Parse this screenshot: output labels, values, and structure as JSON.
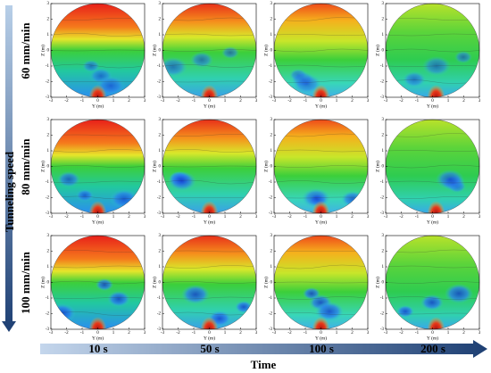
{
  "chart_data": [
    {
      "type": "contour",
      "xlabel": "Y (m)",
      "ylabel": "Z (m)",
      "xlim": [
        -3,
        3
      ],
      "ylim": [
        -3,
        3
      ],
      "xticks": [
        -3,
        -2,
        -1,
        0,
        1,
        2,
        3
      ],
      "yticks": [
        -3,
        -2,
        -1,
        0,
        1,
        2,
        3
      ]
    },
    {
      "type": "contour",
      "xlabel": "Y (m)",
      "ylabel": "Z (m)",
      "xlim": [
        -3,
        3
      ],
      "ylim": [
        -3,
        3
      ],
      "xticks": [
        -3,
        -2,
        -1,
        0,
        1,
        2,
        3
      ],
      "yticks": [
        -3,
        -2,
        -1,
        0,
        1,
        2,
        3
      ]
    },
    {
      "type": "contour",
      "xlabel": "Y (m)",
      "ylabel": "Z (m)",
      "xlim": [
        -3,
        3
      ],
      "ylim": [
        -3,
        3
      ],
      "xticks": [
        -3,
        -2,
        -1,
        0,
        1,
        2,
        3
      ],
      "yticks": [
        -3,
        -2,
        -1,
        0,
        1,
        2,
        3
      ]
    },
    {
      "type": "contour",
      "xlabel": "Y (m)",
      "ylabel": "Z (m)",
      "xlim": [
        -3,
        3
      ],
      "ylim": [
        -3,
        3
      ],
      "xticks": [
        -3,
        -2,
        -1,
        0,
        1,
        2,
        3
      ],
      "yticks": [
        -3,
        -2,
        -1,
        0,
        1,
        2,
        3
      ]
    },
    {
      "type": "contour",
      "xlabel": "Y (m)",
      "ylabel": "Z (m)",
      "xlim": [
        -3,
        3
      ],
      "ylim": [
        -3,
        3
      ],
      "xticks": [
        -3,
        -2,
        -1,
        0,
        1,
        2,
        3
      ],
      "yticks": [
        -3,
        -2,
        -1,
        0,
        1,
        2,
        3
      ]
    },
    {
      "type": "contour",
      "xlabel": "Y (m)",
      "ylabel": "Z (m)",
      "xlim": [
        -3,
        3
      ],
      "ylim": [
        -3,
        3
      ],
      "xticks": [
        -3,
        -2,
        -1,
        0,
        1,
        2,
        3
      ],
      "yticks": [
        -3,
        -2,
        -1,
        0,
        1,
        2,
        3
      ]
    },
    {
      "type": "contour",
      "xlabel": "Y (m)",
      "ylabel": "Z (m)",
      "xlim": [
        -3,
        3
      ],
      "ylim": [
        -3,
        3
      ],
      "xticks": [
        -3,
        -2,
        -1,
        0,
        1,
        2,
        3
      ],
      "yticks": [
        -3,
        -2,
        -1,
        0,
        1,
        2,
        3
      ]
    },
    {
      "type": "contour",
      "xlabel": "Y (m)",
      "ylabel": "Z (m)",
      "xlim": [
        -3,
        3
      ],
      "ylim": [
        -3,
        3
      ],
      "xticks": [
        -3,
        -2,
        -1,
        0,
        1,
        2,
        3
      ],
      "yticks": [
        -3,
        -2,
        -1,
        0,
        1,
        2,
        3
      ]
    },
    {
      "type": "contour",
      "xlabel": "Y (m)",
      "ylabel": "Z (m)",
      "xlim": [
        -3,
        3
      ],
      "ylim": [
        -3,
        3
      ],
      "xticks": [
        -3,
        -2,
        -1,
        0,
        1,
        2,
        3
      ],
      "yticks": [
        -3,
        -2,
        -1,
        0,
        1,
        2,
        3
      ]
    },
    {
      "type": "contour",
      "xlabel": "Y (m)",
      "ylabel": "Z (m)",
      "xlim": [
        -3,
        3
      ],
      "ylim": [
        -3,
        3
      ],
      "xticks": [
        -3,
        -2,
        -1,
        0,
        1,
        2,
        3
      ],
      "yticks": [
        -3,
        -2,
        -1,
        0,
        1,
        2,
        3
      ]
    },
    {
      "type": "contour",
      "xlabel": "Y (m)",
      "ylabel": "Z (m)",
      "xlim": [
        -3,
        3
      ],
      "ylim": [
        -3,
        3
      ],
      "xticks": [
        -3,
        -2,
        -1,
        0,
        1,
        2,
        3
      ],
      "yticks": [
        -3,
        -2,
        -1,
        0,
        1,
        2,
        3
      ]
    },
    {
      "type": "contour",
      "xlabel": "Y (m)",
      "ylabel": "Z (m)",
      "xlim": [
        -3,
        3
      ],
      "ylim": [
        -3,
        3
      ],
      "xticks": [
        -3,
        -2,
        -1,
        0,
        1,
        2,
        3
      ],
      "yticks": [
        -3,
        -2,
        -1,
        0,
        1,
        2,
        3
      ]
    }
  ],
  "figure": {
    "y_title": "Tunneling speed",
    "rows": [
      "60 mm/min",
      "80 mm/min",
      "100 mm/min"
    ],
    "x_title": "Time",
    "columns": [
      "10 s",
      "50 s",
      "100 s",
      "200 s"
    ]
  }
}
